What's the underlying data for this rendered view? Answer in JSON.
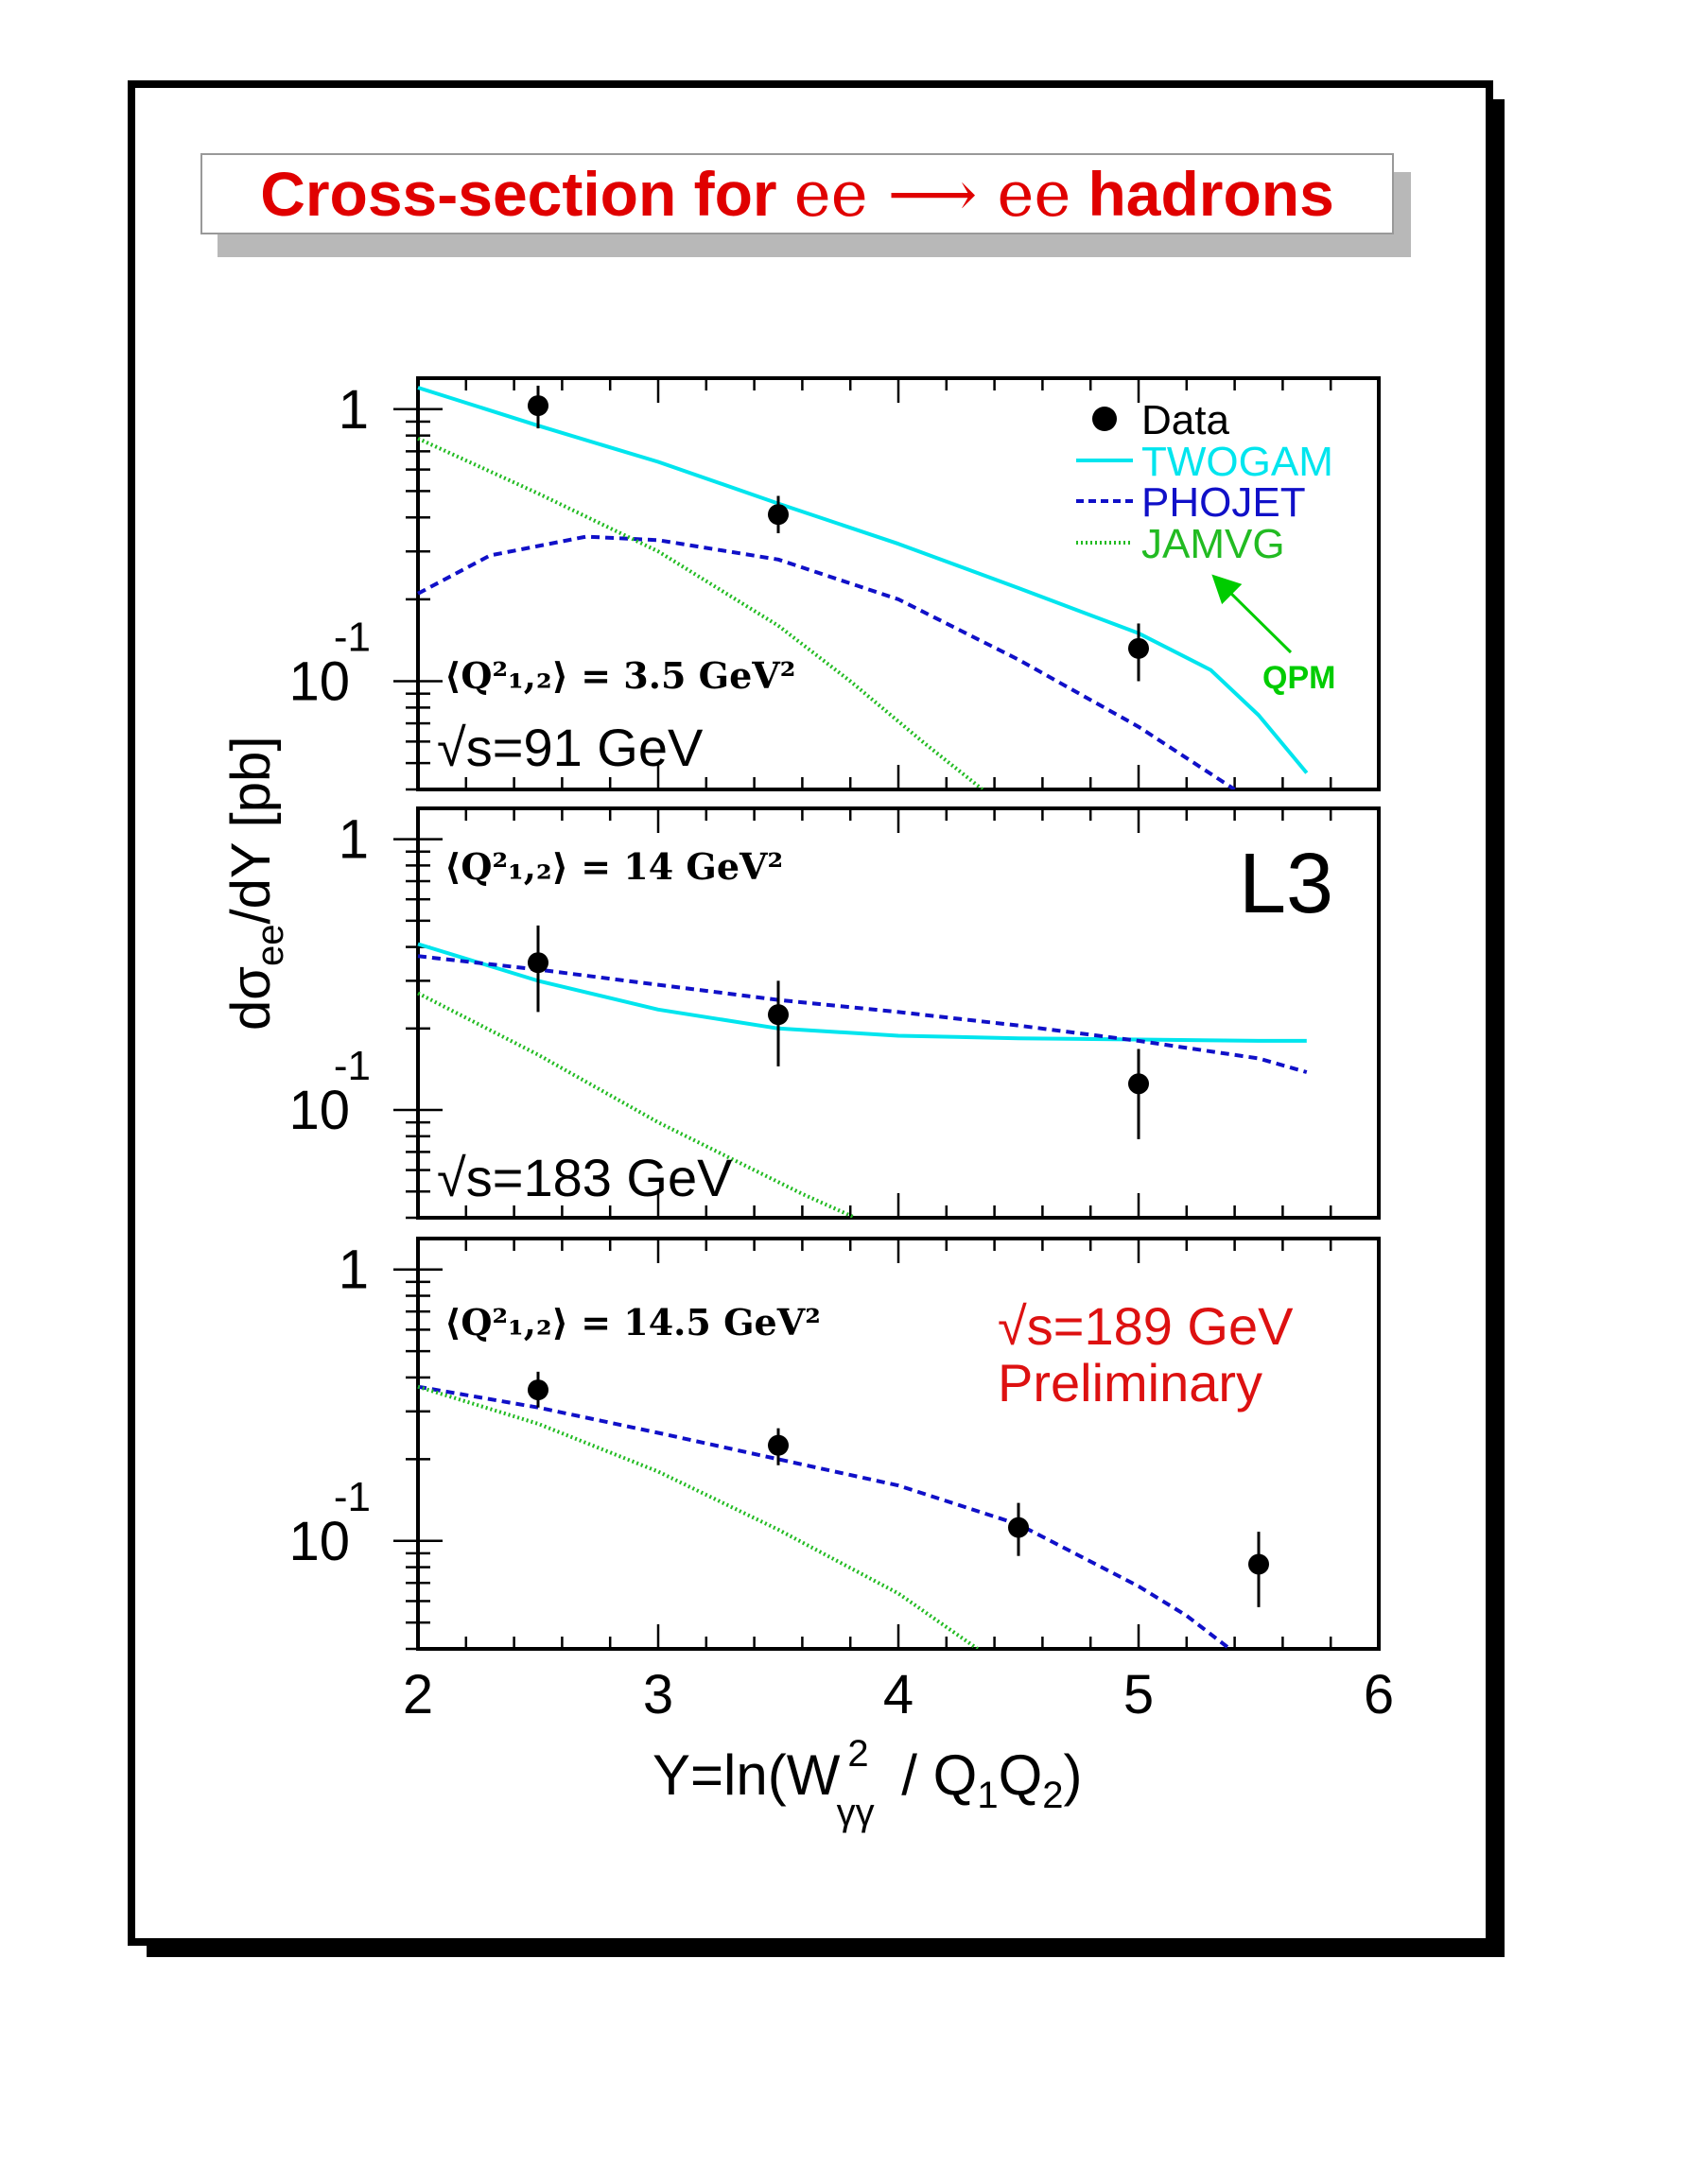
{
  "title": {
    "text_pre": "Cross-section for",
    "text_mid": "ee ⟶ ee",
    "text_post": "hadrons"
  },
  "colors": {
    "twogam": "#00e5ee",
    "phojet": "#1010c8",
    "jamvg": "#22bb22",
    "qpm": "#00cc00",
    "title": "#e00000",
    "data": "#000000"
  },
  "chart_data": {
    "type": "line",
    "xlabel": "Y=ln(W",
    "xlabel_sup": "2",
    "xlabel_sub": "γγ",
    "xlabel_rest": " / Q",
    "xlabel_sub1": "1",
    "xlabel_q2": "Q",
    "xlabel_sub2": "2",
    "xlabel_close": ")",
    "ylabel_main": "dσ",
    "ylabel_sub": "ee",
    "ylabel_rest": "/dY [pb]",
    "xlim": [
      2,
      6
    ],
    "ylim": [
      0.04,
      1.3
    ],
    "yscale": "log",
    "x_tick_labels": [
      "2",
      "3",
      "4",
      "5",
      "6"
    ],
    "y_tick_labels": {
      "one": "1",
      "ten": "10",
      "exp": "-1"
    },
    "experiment_label": "L3",
    "legend": {
      "placement": "top-right",
      "items": [
        {
          "name": "Data",
          "style": "marker"
        },
        {
          "name": "TWOGAM",
          "style": "solid"
        },
        {
          "name": "PHOJET",
          "style": "dashed"
        },
        {
          "name": "JAMVG",
          "style": "dotted"
        }
      ]
    },
    "qpm_annotation": "QPM",
    "panels": [
      {
        "q2_label": "⟨Q²₁,₂⟩ = 3.5 GeV²",
        "energy_label": "√s=91 GeV",
        "data_points": [
          {
            "x": 2.5,
            "y": 1.03,
            "ylo": 0.85,
            "yhi": 1.22
          },
          {
            "x": 3.5,
            "y": 0.41,
            "ylo": 0.35,
            "yhi": 0.48
          },
          {
            "x": 5.0,
            "y": 0.132,
            "ylo": 0.1,
            "yhi": 0.163
          }
        ],
        "series": [
          {
            "name": "TWOGAM",
            "x": [
              2.0,
              2.5,
              3.0,
              3.5,
              4.0,
              4.5,
              5.0,
              5.3,
              5.5,
              5.7
            ],
            "y": [
              1.2,
              0.87,
              0.64,
              0.45,
              0.32,
              0.22,
              0.15,
              0.11,
              0.075,
              0.046
            ]
          },
          {
            "name": "PHOJET",
            "x": [
              2.0,
              2.3,
              2.7,
              3.0,
              3.5,
              4.0,
              4.5,
              5.0,
              5.4
            ],
            "y": [
              0.21,
              0.29,
              0.34,
              0.33,
              0.28,
              0.2,
              0.12,
              0.068,
              0.04
            ]
          },
          {
            "name": "JAMVG",
            "x": [
              2.0,
              2.5,
              3.0,
              3.5,
              3.8,
              4.1,
              4.35
            ],
            "y": [
              0.78,
              0.49,
              0.3,
              0.16,
              0.1,
              0.06,
              0.04
            ]
          }
        ]
      },
      {
        "q2_label": "⟨Q²₁,₂⟩ = 14 GeV²",
        "energy_label": "√s=183 GeV",
        "data_points": [
          {
            "x": 2.5,
            "y": 0.35,
            "ylo": 0.23,
            "yhi": 0.48
          },
          {
            "x": 3.5,
            "y": 0.225,
            "ylo": 0.145,
            "yhi": 0.3
          },
          {
            "x": 5.0,
            "y": 0.125,
            "ylo": 0.078,
            "yhi": 0.168
          }
        ],
        "series": [
          {
            "name": "TWOGAM",
            "x": [
              2.0,
              2.5,
              3.0,
              3.5,
              4.0,
              4.5,
              5.0,
              5.5,
              5.7
            ],
            "y": [
              0.41,
              0.3,
              0.235,
              0.2,
              0.188,
              0.184,
              0.182,
              0.18,
              0.18
            ]
          },
          {
            "name": "PHOJET",
            "x": [
              2.0,
              2.5,
              3.0,
              3.5,
              4.0,
              4.5,
              5.0,
              5.5,
              5.7
            ],
            "y": [
              0.37,
              0.33,
              0.29,
              0.255,
              0.23,
              0.205,
              0.18,
              0.155,
              0.138
            ]
          },
          {
            "name": "JAMVG",
            "x": [
              2.0,
              2.5,
              3.0,
              3.4,
              3.6,
              3.82
            ],
            "y": [
              0.27,
              0.16,
              0.09,
              0.06,
              0.049,
              0.04
            ]
          }
        ]
      },
      {
        "q2_label": "⟨Q²₁,₂⟩ = 14.5 GeV²",
        "energy_label": "√s=189 GeV",
        "preliminary_label": "Preliminary",
        "data_points": [
          {
            "x": 2.5,
            "y": 0.36,
            "ylo": 0.31,
            "yhi": 0.42
          },
          {
            "x": 3.5,
            "y": 0.225,
            "ylo": 0.19,
            "yhi": 0.26
          },
          {
            "x": 4.5,
            "y": 0.112,
            "ylo": 0.088,
            "yhi": 0.138
          },
          {
            "x": 5.5,
            "y": 0.082,
            "ylo": 0.057,
            "yhi": 0.108
          }
        ],
        "series": [
          {
            "name": "PHOJET",
            "x": [
              2.0,
              2.5,
              3.0,
              3.5,
              4.0,
              4.5,
              5.0,
              5.2,
              5.38
            ],
            "y": [
              0.37,
              0.31,
              0.25,
              0.2,
              0.16,
              0.115,
              0.068,
              0.053,
              0.04
            ]
          },
          {
            "name": "JAMVG",
            "x": [
              2.0,
              2.5,
              3.0,
              3.5,
              4.0,
              4.33
            ],
            "y": [
              0.37,
              0.27,
              0.18,
              0.11,
              0.064,
              0.04
            ]
          }
        ]
      }
    ]
  }
}
